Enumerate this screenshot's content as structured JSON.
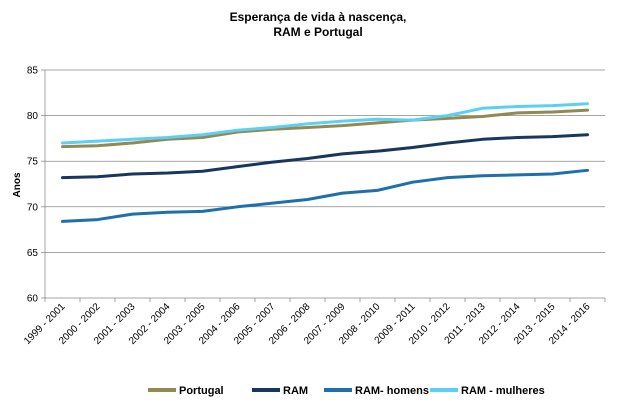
{
  "chart_data": {
    "type": "line",
    "title_lines": [
      "Esperança de vida à nascença,",
      "RAM e Portugal"
    ],
    "ylabel": "Anos",
    "ylim": [
      60,
      85
    ],
    "yticks": [
      60,
      65,
      70,
      75,
      80,
      85
    ],
    "grid": "horizontal",
    "legend_position": "bottom",
    "categories": [
      "1999 - 2001",
      "2000 - 2002",
      "2001 - 2003",
      "2002 - 2004",
      "2003 - 2005",
      "2004 - 2006",
      "2005 - 2007",
      "2006 - 2008",
      "2007 - 2009",
      "2008 - 2010",
      "2009 - 2011",
      "2010 - 2012",
      "2011 - 2013",
      "2012 - 2014",
      "2013 - 2015",
      "2014 - 2016"
    ],
    "series": [
      {
        "name": "Portugal",
        "color": "#938953",
        "values": [
          76.6,
          76.7,
          77.0,
          77.4,
          77.6,
          78.2,
          78.5,
          78.7,
          78.9,
          79.2,
          79.5,
          79.7,
          79.9,
          80.3,
          80.4,
          80.6
        ]
      },
      {
        "name": "RAM",
        "color": "#17375e",
        "values": [
          73.2,
          73.3,
          73.6,
          73.7,
          73.9,
          74.4,
          74.9,
          75.3,
          75.8,
          76.1,
          76.5,
          77.0,
          77.4,
          77.6,
          77.7,
          77.9
        ]
      },
      {
        "name": "RAM- homens",
        "color": "#1f6fad",
        "values": [
          68.4,
          68.6,
          69.2,
          69.4,
          69.5,
          70.0,
          70.4,
          70.8,
          71.5,
          71.8,
          72.7,
          73.2,
          73.4,
          73.5,
          73.6,
          74.0
        ]
      },
      {
        "name": "RAM - mulheres",
        "color": "#5bd0f5",
        "values": [
          77.0,
          77.2,
          77.4,
          77.6,
          77.9,
          78.4,
          78.7,
          79.1,
          79.4,
          79.6,
          79.5,
          80.0,
          80.8,
          81.0,
          81.1,
          81.3
        ]
      }
    ]
  }
}
